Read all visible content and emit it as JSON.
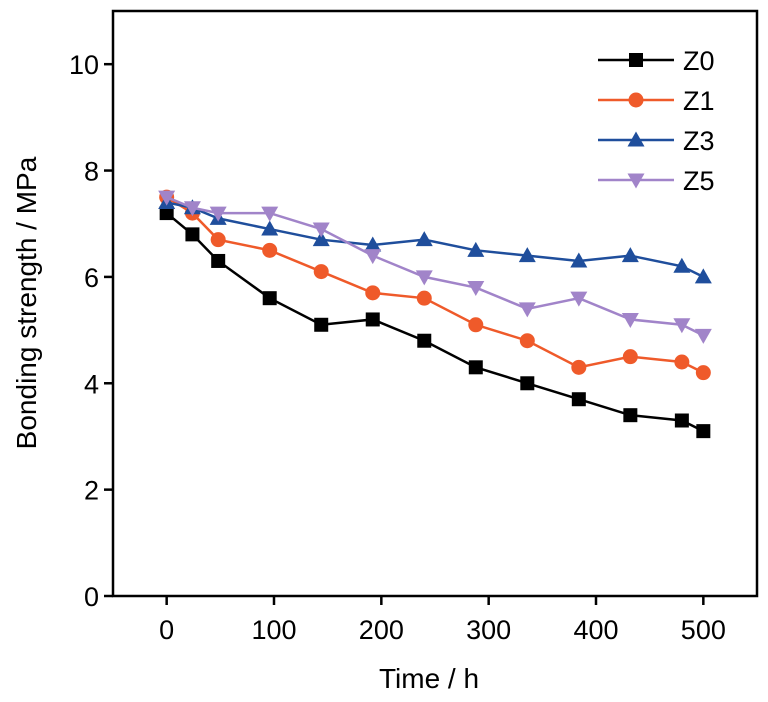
{
  "chart_data": {
    "type": "line",
    "title": "",
    "xlabel": "Time / h",
    "ylabel": "Bonding strength / MPa",
    "xlim": [
      -50,
      550
    ],
    "ylim": [
      0,
      11
    ],
    "xticks": [
      0,
      100,
      200,
      300,
      400,
      500
    ],
    "yticks": [
      0,
      2,
      4,
      6,
      8,
      10
    ],
    "grid": false,
    "legend_position": "top-right",
    "series": [
      {
        "name": "Z0",
        "color": "#000000",
        "marker": "square",
        "x": [
          0,
          24,
          48,
          96,
          144,
          192,
          240,
          288,
          336,
          384,
          432,
          480,
          500
        ],
        "y": [
          7.2,
          6.8,
          6.3,
          5.6,
          5.1,
          5.2,
          4.8,
          4.3,
          4.0,
          3.7,
          3.4,
          3.3,
          3.1
        ]
      },
      {
        "name": "Z1",
        "color": "#ef5a2a",
        "marker": "circle",
        "x": [
          0,
          24,
          48,
          96,
          144,
          192,
          240,
          288,
          336,
          384,
          432,
          480,
          500
        ],
        "y": [
          7.5,
          7.2,
          6.7,
          6.5,
          6.1,
          5.7,
          5.6,
          5.1,
          4.8,
          4.3,
          4.5,
          4.4,
          4.2
        ]
      },
      {
        "name": "Z3",
        "color": "#1f4e9c",
        "marker": "triangle-up",
        "x": [
          0,
          24,
          48,
          96,
          144,
          192,
          240,
          288,
          336,
          384,
          432,
          480,
          500
        ],
        "y": [
          7.4,
          7.3,
          7.1,
          6.9,
          6.7,
          6.6,
          6.7,
          6.5,
          6.4,
          6.3,
          6.4,
          6.2,
          6.0
        ]
      },
      {
        "name": "Z5",
        "color": "#a184c9",
        "marker": "triangle-down",
        "x": [
          0,
          24,
          48,
          96,
          144,
          192,
          240,
          288,
          336,
          384,
          432,
          480,
          500
        ],
        "y": [
          7.5,
          7.3,
          7.2,
          7.2,
          6.9,
          6.4,
          6.0,
          5.8,
          5.4,
          5.6,
          5.2,
          5.1,
          4.9
        ]
      }
    ]
  }
}
